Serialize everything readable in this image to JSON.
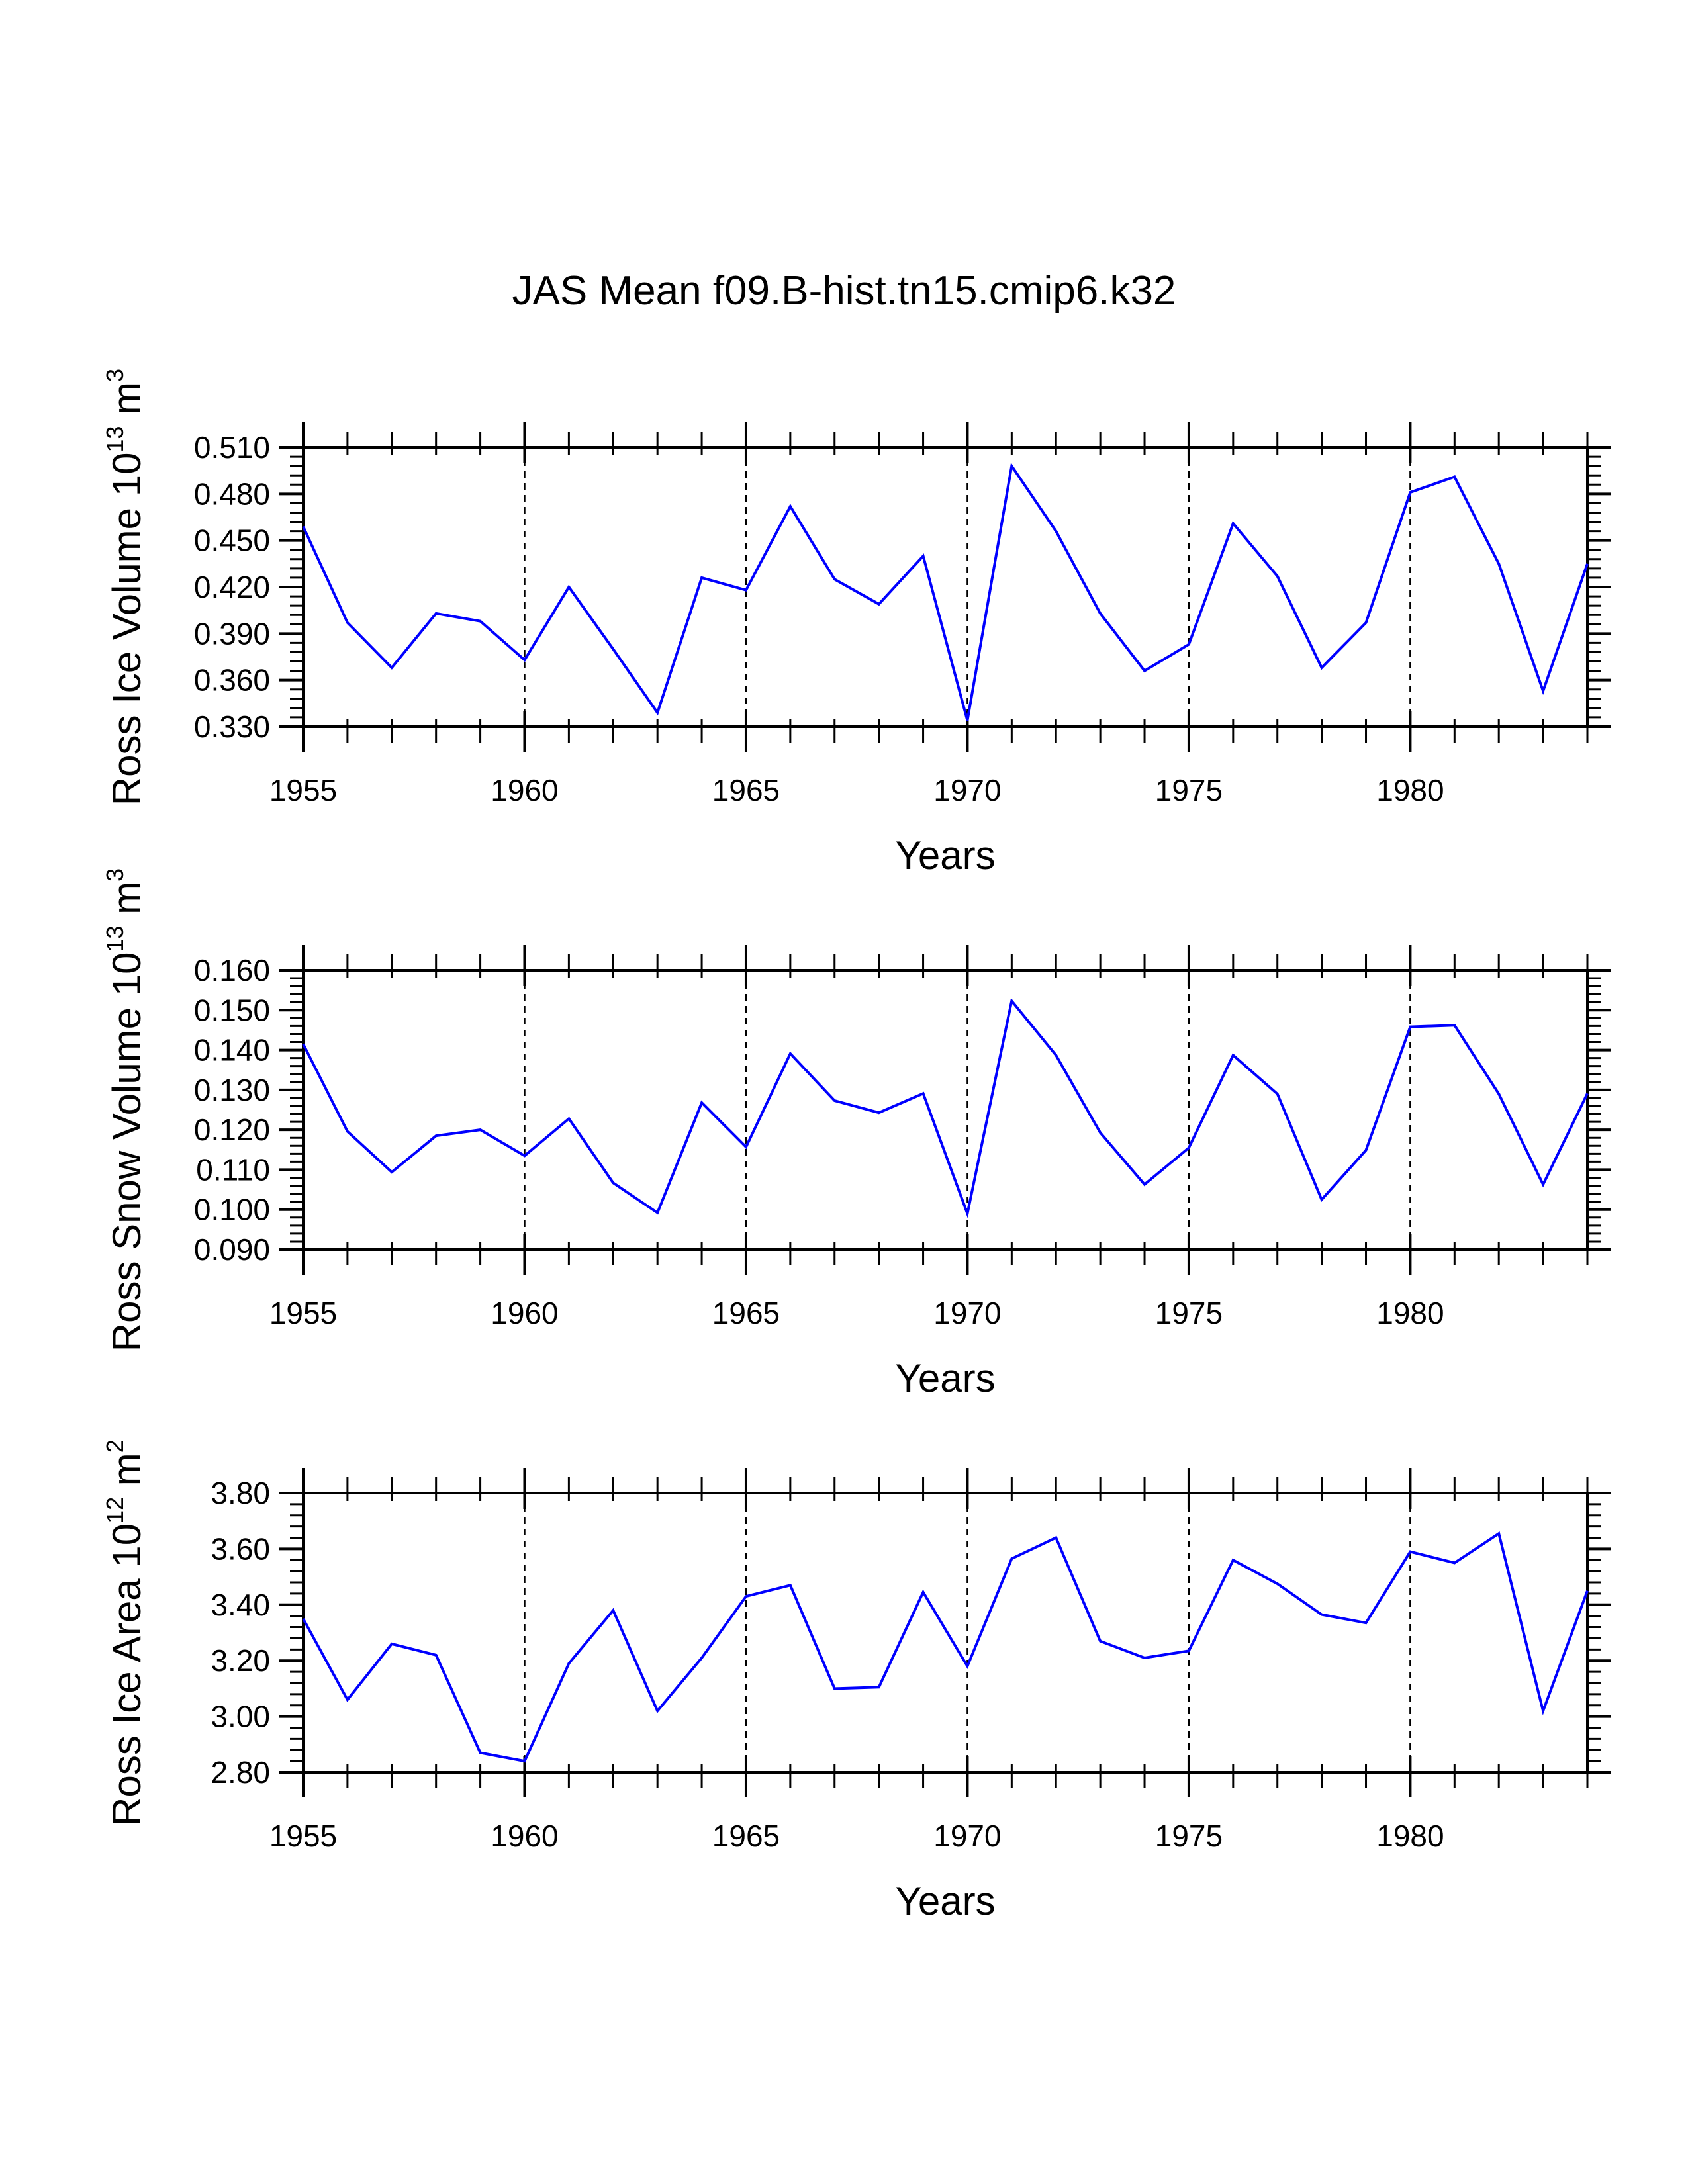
{
  "title": "JAS Mean f09.B-hist.tn15.cmip6.k32",
  "series_color": "#0000ff",
  "chart_data": [
    {
      "type": "line",
      "name": "ross-ice-volume",
      "ylabel": "Ross Ice Volume 10",
      "ylabel_exp": "13",
      "ylabel_unit": "m",
      "ylabel_unit_exp": "3",
      "xlabel": "Years",
      "xlim": [
        1955,
        1984
      ],
      "ylim": [
        0.33,
        0.51
      ],
      "xticks": [
        1955,
        1960,
        1965,
        1970,
        1975,
        1980
      ],
      "xtick_labels": [
        "1955",
        "1960",
        "1965",
        "1970",
        "1975",
        "1980"
      ],
      "yticks": [
        0.33,
        0.36,
        0.39,
        0.42,
        0.45,
        0.48,
        0.51
      ],
      "ytick_labels": [
        "0.330",
        "0.360",
        "0.390",
        "0.420",
        "0.450",
        "0.480",
        "0.510"
      ],
      "y_minor_step": 0.006,
      "vgrid": [
        1960,
        1965,
        1970,
        1975,
        1980
      ],
      "x": [
        1955,
        1956,
        1957,
        1958,
        1959,
        1960,
        1961,
        1962,
        1963,
        1964,
        1965,
        1966,
        1967,
        1968,
        1969,
        1970,
        1971,
        1972,
        1973,
        1974,
        1975,
        1976,
        1977,
        1978,
        1979,
        1980,
        1981,
        1982,
        1983,
        1984
      ],
      "values": [
        0.459,
        0.397,
        0.368,
        0.403,
        0.398,
        0.373,
        0.42,
        0.38,
        0.339,
        0.426,
        0.418,
        0.472,
        0.425,
        0.409,
        0.44,
        0.334,
        0.498,
        0.456,
        0.403,
        0.366,
        0.383,
        0.461,
        0.427,
        0.368,
        0.397,
        0.481,
        0.491,
        0.435,
        0.353,
        0.435
      ]
    },
    {
      "type": "line",
      "name": "ross-snow-volume",
      "ylabel": "Ross Snow Volume 10",
      "ylabel_exp": "13",
      "ylabel_unit": "m",
      "ylabel_unit_exp": "3",
      "xlabel": "Years",
      "xlim": [
        1955,
        1984
      ],
      "ylim": [
        0.09,
        0.16
      ],
      "xticks": [
        1955,
        1960,
        1965,
        1970,
        1975,
        1980
      ],
      "xtick_labels": [
        "1955",
        "1960",
        "1965",
        "1970",
        "1975",
        "1980"
      ],
      "yticks": [
        0.09,
        0.1,
        0.11,
        0.12,
        0.13,
        0.14,
        0.15,
        0.16
      ],
      "ytick_labels": [
        "0.090",
        "0.100",
        "0.110",
        "0.120",
        "0.130",
        "0.140",
        "0.150",
        "0.160"
      ],
      "y_minor_step": 0.002,
      "vgrid": [
        1960,
        1965,
        1970,
        1975,
        1980
      ],
      "x": [
        1955,
        1956,
        1957,
        1958,
        1959,
        1960,
        1961,
        1962,
        1963,
        1964,
        1965,
        1966,
        1967,
        1968,
        1969,
        1970,
        1971,
        1972,
        1973,
        1974,
        1975,
        1976,
        1977,
        1978,
        1979,
        1980,
        1981,
        1982,
        1983,
        1984
      ],
      "values": [
        0.1415,
        0.1196,
        0.1094,
        0.1185,
        0.12,
        0.1135,
        0.1228,
        0.1067,
        0.0992,
        0.1268,
        0.1157,
        0.1391,
        0.1273,
        0.1243,
        0.1291,
        0.099,
        0.1523,
        0.1387,
        0.1193,
        0.1063,
        0.1155,
        0.1387,
        0.129,
        0.1025,
        0.1149,
        0.1458,
        0.1462,
        0.129,
        0.1063,
        0.1291
      ]
    },
    {
      "type": "line",
      "name": "ross-ice-area",
      "ylabel": "Ross Ice Area 10",
      "ylabel_exp": "12",
      "ylabel_unit": "m",
      "ylabel_unit_exp": "2",
      "xlabel": "Years",
      "xlim": [
        1955,
        1984
      ],
      "ylim": [
        2.8,
        3.8
      ],
      "xticks": [
        1955,
        1960,
        1965,
        1970,
        1975,
        1980
      ],
      "xtick_labels": [
        "1955",
        "1960",
        "1965",
        "1970",
        "1975",
        "1980"
      ],
      "yticks": [
        2.8,
        3.0,
        3.2,
        3.4,
        3.6,
        3.8
      ],
      "ytick_labels": [
        "2.80",
        "3.00",
        "3.20",
        "3.40",
        "3.60",
        "3.80"
      ],
      "y_minor_step": 0.04,
      "vgrid": [
        1960,
        1965,
        1970,
        1975,
        1980
      ],
      "x": [
        1955,
        1956,
        1957,
        1958,
        1959,
        1960,
        1961,
        1962,
        1963,
        1964,
        1965,
        1966,
        1967,
        1968,
        1969,
        1970,
        1971,
        1972,
        1973,
        1974,
        1975,
        1976,
        1977,
        1978,
        1979,
        1980,
        1981,
        1982,
        1983,
        1984
      ],
      "values": [
        3.35,
        3.06,
        3.26,
        3.22,
        2.87,
        2.84,
        3.19,
        3.38,
        3.02,
        3.21,
        3.43,
        3.47,
        3.1,
        3.105,
        3.445,
        3.18,
        3.565,
        3.64,
        3.27,
        3.21,
        3.235,
        3.56,
        3.475,
        3.365,
        3.335,
        3.59,
        3.55,
        3.655,
        3.02,
        3.45
      ]
    }
  ]
}
